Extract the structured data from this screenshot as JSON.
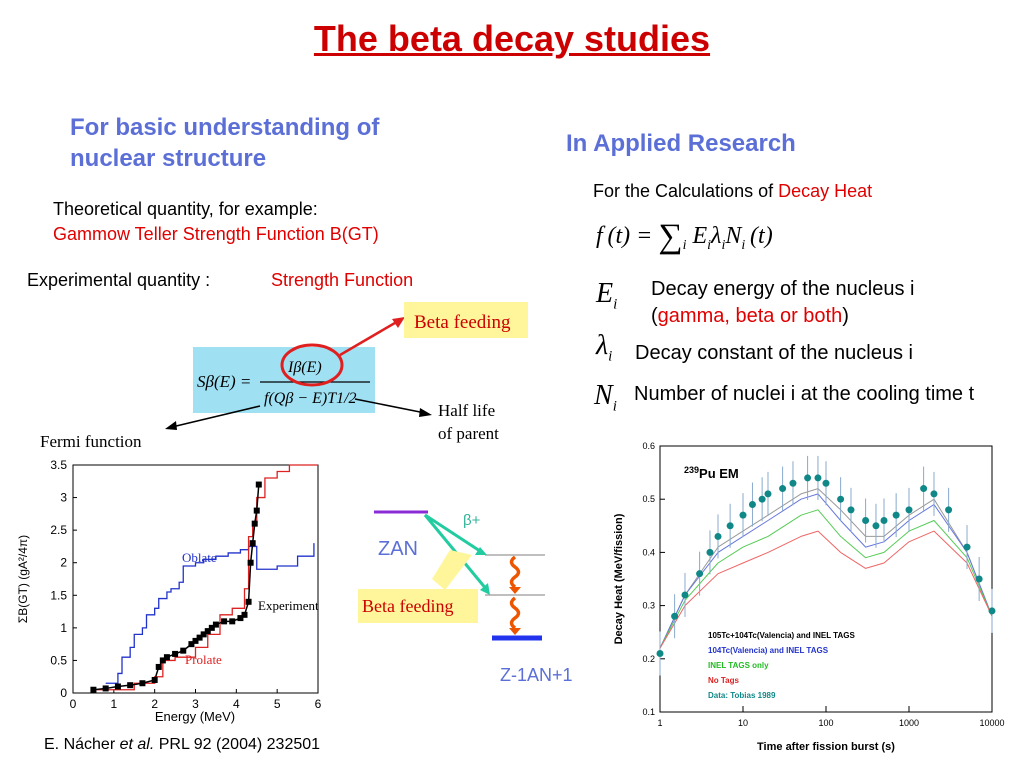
{
  "title": "The beta decay studies",
  "left": {
    "heading": "For basic understanding of nuclear structure",
    "theoretical_label": "Theoretical quantity, for example:",
    "theoretical_value": "Gammow Teller Strength Function B(GT)",
    "experimental_label": "Experimental quantity :",
    "experimental_value": "Strength Function",
    "formula": {
      "lhs": "Sβ(E) =",
      "numerator": "Iβ(E)",
      "denominator": "f(Qβ − E)T1/2",
      "beta_feeding": "Beta feeding",
      "half_life": "Half life of parent",
      "fermi": "Fermi function"
    },
    "decay_scheme": {
      "parent": "ZAN",
      "beta_plus": "β+",
      "daughter": "Z-1AN+1",
      "beta_feeding": "Beta feeding"
    },
    "citation": {
      "author": "E. Nácher",
      "etal": "et al.",
      "ref": "PRL 92 (2004) 232501"
    }
  },
  "right": {
    "heading": "In Applied Research",
    "calc_prefix": "For the Calculations of",
    "calc_value": "Decay Heat",
    "equation": "f(t) = Σi Ei λi Ni(t)",
    "defs": [
      {
        "symbol": "Ei",
        "text_a": "Decay energy of the nucleus i",
        "paren_open": "(",
        "text_red": "gamma, beta or both",
        "paren_close": ")"
      },
      {
        "symbol": "λi",
        "text_a": "Decay constant of the nucleus i"
      },
      {
        "symbol": "Ni",
        "text_a": "Number of nuclei i at the cooling time t"
      }
    ]
  },
  "chart_data": [
    {
      "type": "line",
      "xlabel": "Energy (MeV)",
      "ylabel": "ΣB(GT) (gA²/4π)",
      "xlim": [
        0,
        6
      ],
      "ylim": [
        0,
        3.5
      ],
      "xticks": [
        "0",
        "1",
        "2",
        "3",
        "4",
        "5",
        "6"
      ],
      "yticks": [
        "0",
        "0.5",
        "1",
        "1.5",
        "2",
        "2.5",
        "3",
        "3.5"
      ],
      "annotations": [
        "Oblate",
        "Experiment",
        "Prolate"
      ],
      "series": [
        {
          "name": "Oblate",
          "color": "#2233cc",
          "x": [
            0.8,
            1.1,
            1.2,
            1.4,
            1.5,
            1.7,
            1.8,
            2.0,
            2.1,
            2.3,
            2.4,
            2.6,
            2.7,
            3.0,
            3.2,
            3.5,
            3.8,
            4.1,
            4.3,
            4.5,
            5.0,
            5.5,
            5.9
          ],
          "y": [
            0.15,
            0.3,
            0.55,
            0.7,
            0.9,
            1.0,
            1.2,
            1.3,
            1.45,
            1.55,
            1.6,
            1.7,
            1.95,
            2.0,
            2.05,
            2.1,
            2.15,
            2.2,
            2.25,
            1.9,
            1.95,
            2.1,
            2.3
          ]
        },
        {
          "name": "Prolate",
          "color": "#dd2222",
          "x": [
            0.5,
            1.5,
            2.0,
            2.2,
            2.5,
            3.0,
            3.3,
            3.6,
            3.9,
            4.2,
            4.3,
            4.4,
            4.5,
            4.7,
            5.0,
            5.3,
            6.0
          ],
          "y": [
            0.05,
            0.15,
            0.25,
            0.5,
            0.55,
            0.7,
            0.9,
            1.2,
            1.3,
            1.6,
            2.4,
            2.6,
            3.0,
            3.3,
            3.4,
            3.5,
            3.5
          ]
        },
        {
          "name": "Experiment",
          "color": "#000000",
          "x": [
            0.5,
            0.8,
            1.1,
            1.4,
            1.7,
            2.0,
            2.1,
            2.2,
            2.3,
            2.5,
            2.7,
            2.9,
            3.0,
            3.1,
            3.2,
            3.3,
            3.4,
            3.5,
            3.7,
            3.9,
            4.1,
            4.2,
            4.3,
            4.35,
            4.4,
            4.45,
            4.5,
            4.55
          ],
          "y": [
            0.05,
            0.07,
            0.1,
            0.12,
            0.15,
            0.2,
            0.4,
            0.5,
            0.55,
            0.6,
            0.65,
            0.75,
            0.8,
            0.85,
            0.9,
            0.95,
            1.0,
            1.05,
            1.1,
            1.1,
            1.15,
            1.2,
            1.4,
            2.0,
            2.3,
            2.6,
            2.8,
            3.2
          ]
        }
      ]
    },
    {
      "type": "line",
      "xlabel": "Time after fission burst (s)",
      "ylabel": "Decay Heat (MeV/fission)",
      "title": "239Pu EM",
      "xscale": "log",
      "xlim": [
        1,
        10000
      ],
      "ylim": [
        0.1,
        0.6
      ],
      "xticks": [
        "1",
        "10",
        "100",
        "1000",
        "10000"
      ],
      "yticks": [
        "0.1",
        "0.2",
        "0.3",
        "0.4",
        "0.5",
        "0.6"
      ],
      "legend": [
        "105Tc+104Tc(Valencia) and INEL TAGS",
        "104Tc(Valencia) and INEL TAGS",
        "INEL TAGS only",
        "No Tags",
        "Data: Tobias 1989"
      ],
      "legend_colors": [
        "#000000",
        "#2233cc",
        "#22bb22",
        "#dd2222",
        "#118888"
      ],
      "series": [
        {
          "name": "105Tc+104Tc(Valencia) and INEL TAGS",
          "color": "#999999",
          "x": [
            1,
            2,
            5,
            10,
            20,
            50,
            80,
            150,
            300,
            500,
            1000,
            2000,
            5000,
            10000
          ],
          "y": [
            0.22,
            0.32,
            0.41,
            0.44,
            0.47,
            0.51,
            0.52,
            0.48,
            0.43,
            0.43,
            0.47,
            0.5,
            0.4,
            0.28
          ]
        },
        {
          "name": "104Tc(Valencia) and INEL TAGS",
          "color": "#6677dd",
          "x": [
            1,
            2,
            5,
            10,
            20,
            50,
            80,
            150,
            300,
            500,
            1000,
            2000,
            5000,
            10000
          ],
          "y": [
            0.22,
            0.32,
            0.4,
            0.43,
            0.46,
            0.5,
            0.51,
            0.46,
            0.41,
            0.42,
            0.46,
            0.49,
            0.4,
            0.28
          ]
        },
        {
          "name": "INEL TAGS only",
          "color": "#55cc55",
          "x": [
            1,
            2,
            5,
            10,
            20,
            50,
            80,
            150,
            300,
            500,
            1000,
            2000,
            5000,
            10000
          ],
          "y": [
            0.22,
            0.31,
            0.38,
            0.41,
            0.43,
            0.47,
            0.48,
            0.43,
            0.39,
            0.4,
            0.44,
            0.46,
            0.39,
            0.28
          ]
        },
        {
          "name": "No Tags",
          "color": "#ee6666",
          "x": [
            1,
            2,
            5,
            10,
            20,
            50,
            80,
            150,
            300,
            500,
            1000,
            2000,
            5000,
            10000
          ],
          "y": [
            0.22,
            0.3,
            0.36,
            0.38,
            0.4,
            0.43,
            0.44,
            0.4,
            0.37,
            0.38,
            0.42,
            0.44,
            0.38,
            0.28
          ]
        },
        {
          "name": "Data: Tobias 1989",
          "color": "#118888",
          "x": [
            1,
            1.5,
            2,
            3,
            4,
            5,
            7,
            10,
            13,
            17,
            20,
            30,
            40,
            60,
            80,
            100,
            150,
            200,
            300,
            400,
            500,
            700,
            1000,
            1500,
            2000,
            3000,
            5000,
            7000,
            10000
          ],
          "y": [
            0.21,
            0.28,
            0.32,
            0.36,
            0.4,
            0.43,
            0.45,
            0.47,
            0.49,
            0.5,
            0.51,
            0.52,
            0.53,
            0.54,
            0.54,
            0.53,
            0.5,
            0.48,
            0.46,
            0.45,
            0.46,
            0.47,
            0.48,
            0.52,
            0.51,
            0.48,
            0.41,
            0.35,
            0.29
          ]
        }
      ]
    }
  ]
}
